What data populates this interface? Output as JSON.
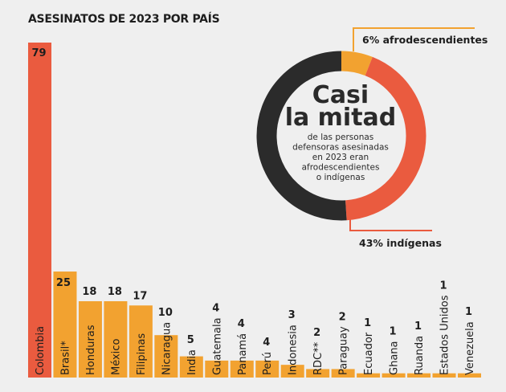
{
  "chart_data": [
    {
      "type": "bar",
      "title": "ASESINATOS DE 2023 POR PAÍS",
      "categories": [
        "Colombia",
        "Brasil*",
        "Honduras",
        "México",
        "Filipinas",
        "Nicaragua",
        "India",
        "Guatemala",
        "Panamá",
        "Perú",
        "Indonesia",
        "RDC**",
        "Paraguay",
        "Ecuador",
        "Ghana",
        "Ruanda",
        "Estados Unidos",
        "Venezuela"
      ],
      "values": [
        79,
        25,
        18,
        18,
        17,
        10,
        5,
        4,
        4,
        4,
        3,
        2,
        2,
        1,
        1,
        1,
        1,
        1
      ],
      "colors": {
        "highlight": "#ea5b3f",
        "default": "#f2a230",
        "text": "#1e1e1e"
      },
      "grid": false
    },
    {
      "type": "pie",
      "variant": "donut",
      "headline": [
        "Casi",
        "la mitad"
      ],
      "body": [
        "de las personas",
        "defensoras asesinadas",
        "en 2023 eran",
        "afrodescendientes",
        "o indígenas"
      ],
      "slices": [
        {
          "label": "6% afrodescendientes",
          "value": 6,
          "color": "#f2a230"
        },
        {
          "label": "43% indígenas",
          "value": 43,
          "color": "#ea5b3f"
        },
        {
          "value": 51,
          "color": "#2b2b2b"
        }
      ]
    }
  ]
}
